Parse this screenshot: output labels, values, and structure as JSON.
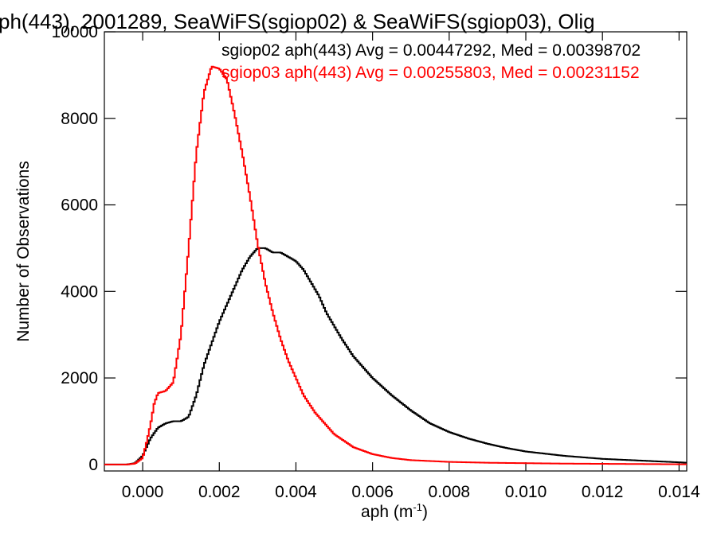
{
  "chart_data": {
    "type": "line",
    "title": "ph(443), 2001289, SeaWiFS(sgiop02) & SeaWiFS(sgiop03), Olig",
    "xlabel": "aph (m",
    "xlabel_sup": "-1",
    "xlabel_end": ")",
    "ylabel": "Number of Observations",
    "xlim": [
      -0.001,
      0.0142
    ],
    "ylim": [
      -150,
      10000
    ],
    "x_ticks": [
      0.0,
      0.002,
      0.004,
      0.006,
      0.008,
      0.01,
      0.012,
      0.014
    ],
    "x_tick_labels": [
      "0.000",
      "0.002",
      "0.004",
      "0.006",
      "0.008",
      "0.010",
      "0.012",
      "0.014"
    ],
    "y_ticks": [
      0,
      2000,
      4000,
      6000,
      8000,
      10000
    ],
    "y_tick_labels": [
      "0",
      "2000",
      "4000",
      "6000",
      "8000",
      "10000"
    ],
    "grid": false,
    "legend": "top-right",
    "annotations": [
      {
        "text": "sgiop02 aph(443) Avg = 0.00447292, Med = 0.00398702",
        "color": "#000000"
      },
      {
        "text": "sgiop03 aph(443) Avg = 0.00255803, Med = 0.00231152",
        "color": "#ff0000"
      }
    ],
    "series": [
      {
        "color": "#000000",
        "x": [
          -0.001,
          -0.0004,
          -0.0002,
          0.0,
          0.0002,
          0.0004,
          0.0006,
          0.0008,
          0.001,
          0.0012,
          0.0014,
          0.0016,
          0.0018,
          0.002,
          0.0022,
          0.0024,
          0.0026,
          0.0028,
          0.003,
          0.0032,
          0.0034,
          0.0036,
          0.0038,
          0.004,
          0.0042,
          0.0044,
          0.0046,
          0.0048,
          0.005,
          0.0052,
          0.0055,
          0.006,
          0.0065,
          0.007,
          0.0075,
          0.008,
          0.0085,
          0.009,
          0.0095,
          0.01,
          0.011,
          0.012,
          0.013,
          0.014,
          0.0142
        ],
        "y": [
          0,
          0,
          30,
          200,
          600,
          850,
          950,
          1000,
          1000,
          1100,
          1600,
          2300,
          2800,
          3300,
          3700,
          4100,
          4500,
          4800,
          5000,
          5000,
          4900,
          4900,
          4800,
          4700,
          4500,
          4200,
          3900,
          3500,
          3200,
          2900,
          2500,
          2000,
          1600,
          1250,
          950,
          750,
          600,
          480,
          380,
          300,
          200,
          130,
          90,
          50,
          40
        ]
      },
      {
        "color": "#ff0000",
        "x": [
          -0.001,
          -0.0004,
          -0.0002,
          0.0,
          0.0001,
          0.0002,
          0.0003,
          0.0004,
          0.0006,
          0.0008,
          0.001,
          0.0012,
          0.0014,
          0.0016,
          0.0018,
          0.002,
          0.0022,
          0.0024,
          0.0026,
          0.0028,
          0.003,
          0.0032,
          0.0034,
          0.0036,
          0.0038,
          0.004,
          0.0042,
          0.0045,
          0.005,
          0.0055,
          0.006,
          0.0065,
          0.007,
          0.008,
          0.009,
          0.01,
          0.011,
          0.012,
          0.013,
          0.014,
          0.0142
        ],
        "y": [
          0,
          0,
          20,
          150,
          500,
          900,
          1400,
          1650,
          1700,
          1900,
          3000,
          5000,
          7200,
          8600,
          9200,
          9150,
          8900,
          8100,
          7200,
          6200,
          5100,
          4200,
          3500,
          2900,
          2400,
          2000,
          1600,
          1200,
          700,
          400,
          240,
          150,
          100,
          60,
          40,
          30,
          20,
          15,
          10,
          5,
          5
        ]
      }
    ]
  }
}
